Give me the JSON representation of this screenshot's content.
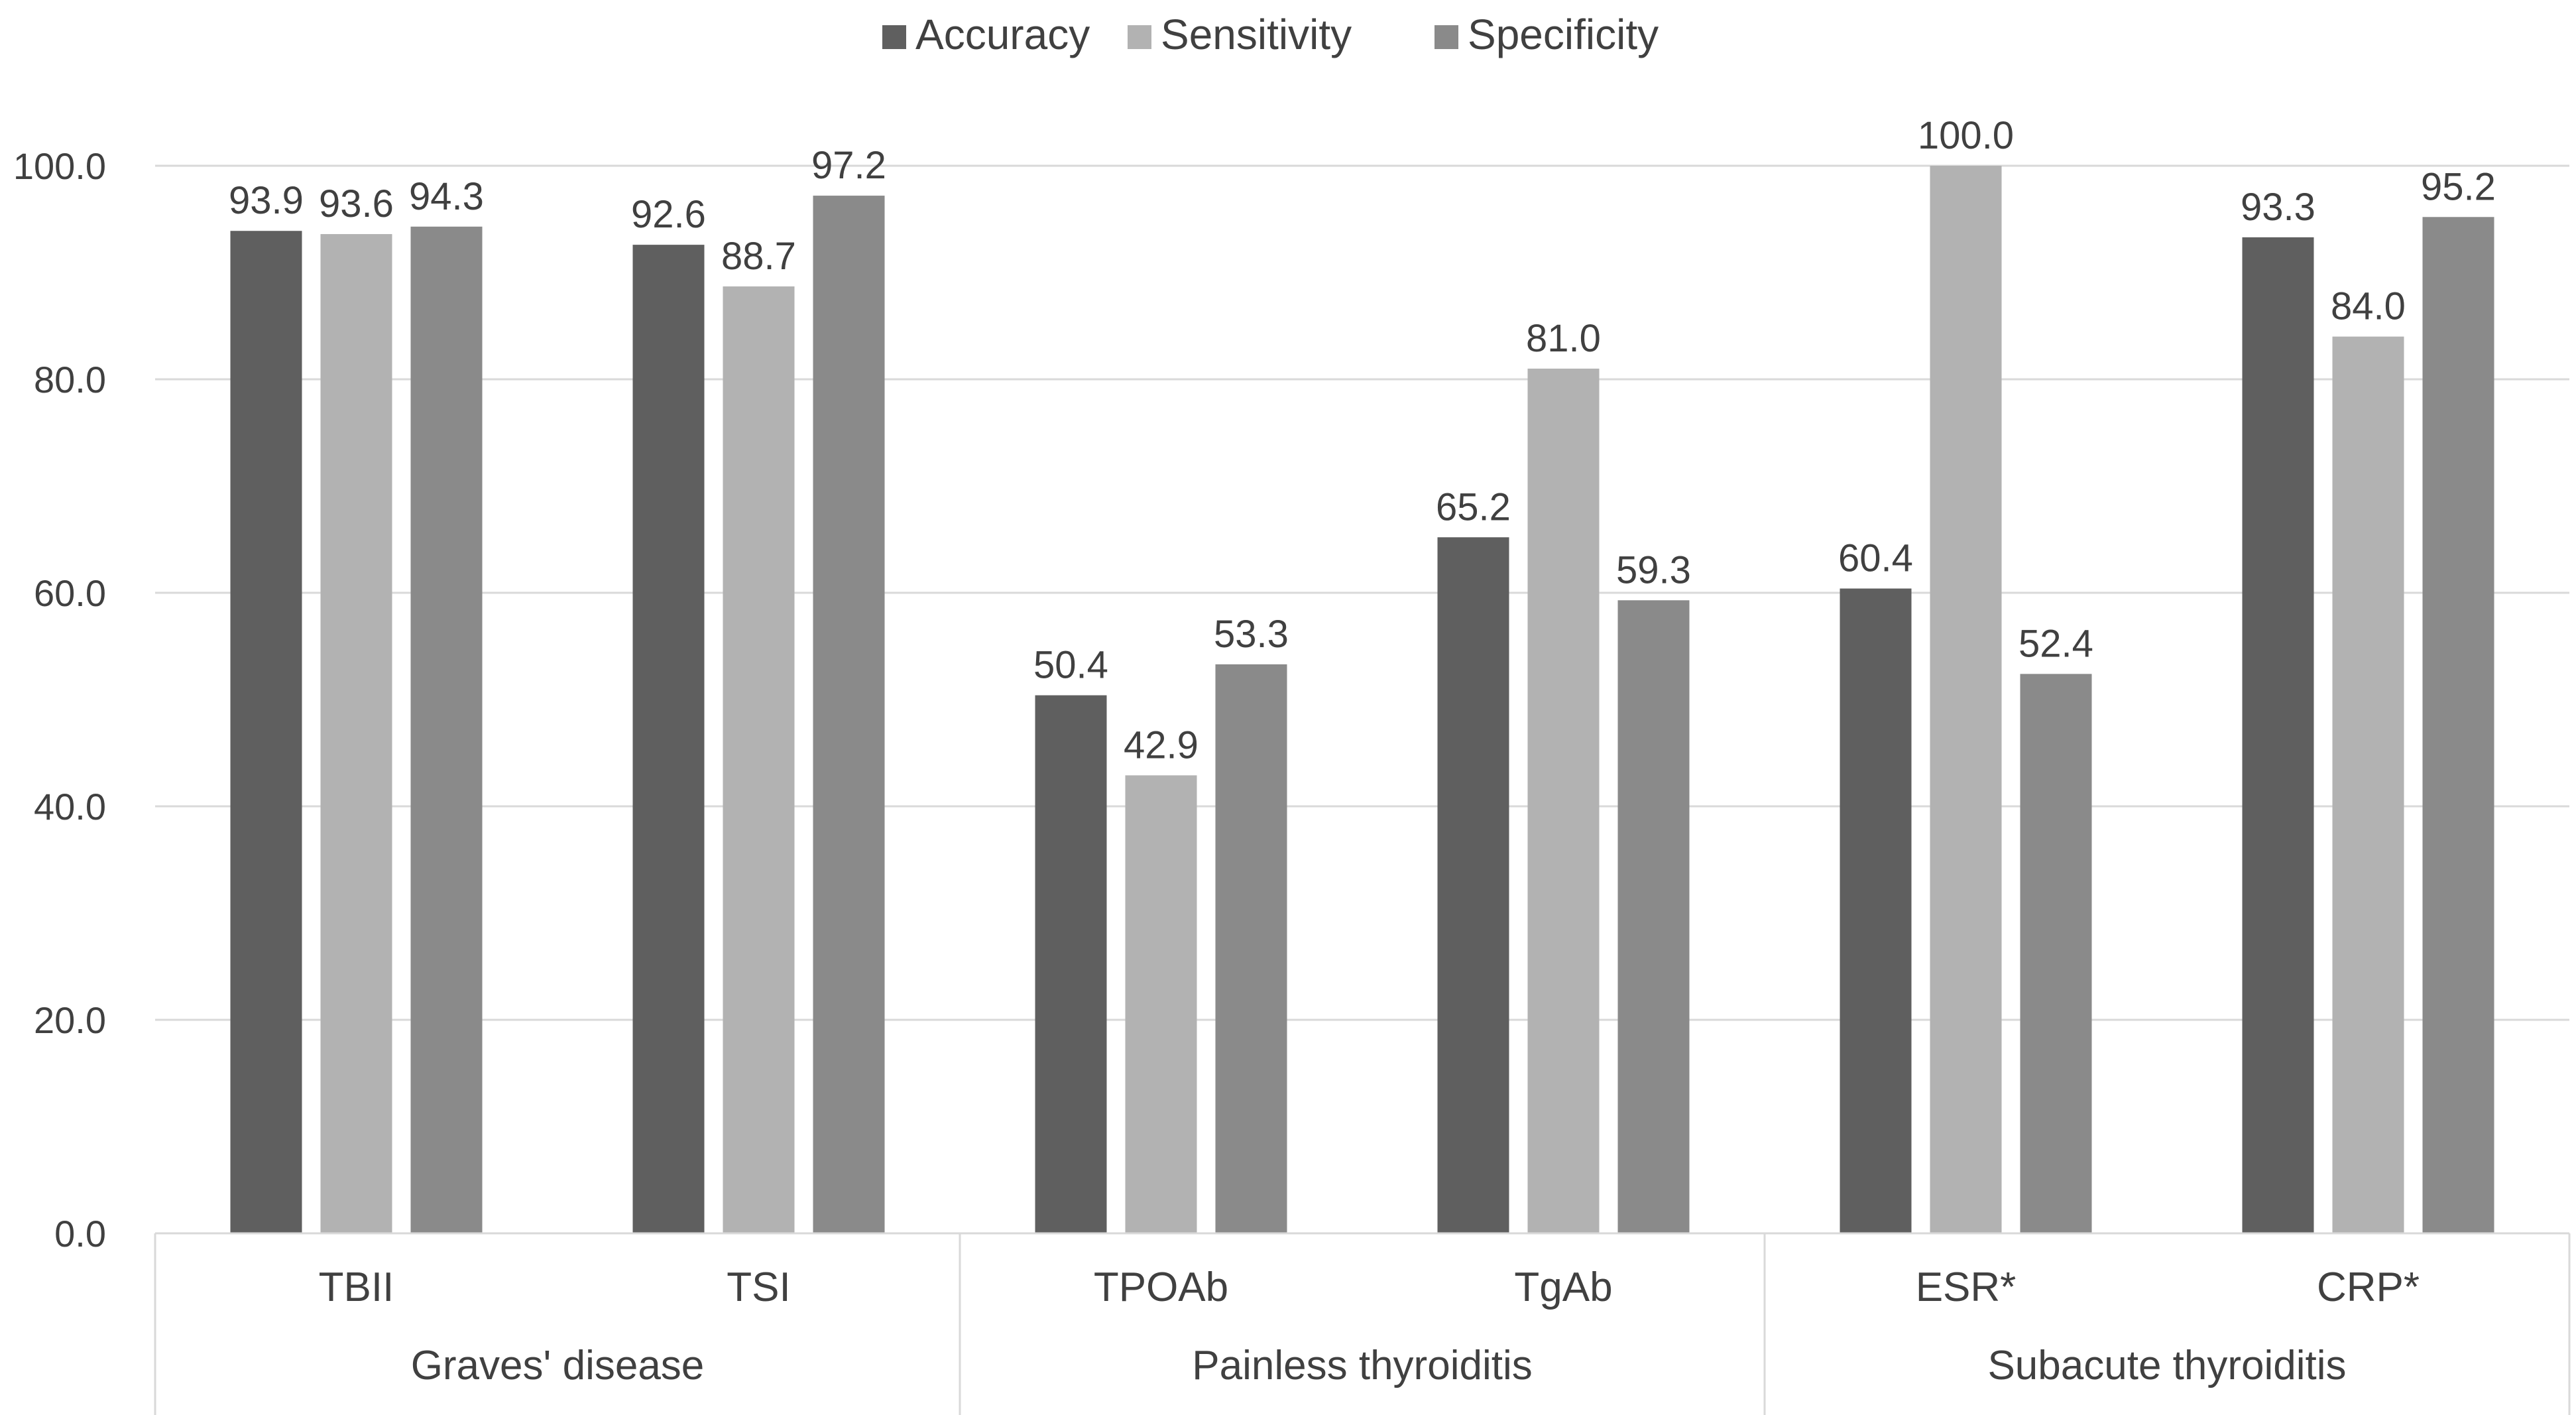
{
  "chart_data": {
    "type": "bar",
    "title": "",
    "xlabel": "",
    "ylabel": "",
    "ylim": [
      0,
      100
    ],
    "yticks": [
      0,
      20,
      40,
      60,
      80,
      100
    ],
    "ytick_labels": [
      "0.0",
      "20.0",
      "40.0",
      "60.0",
      "80.0",
      "100.0"
    ],
    "grid": true,
    "legend_position": "top-center",
    "categories": [
      "TBII",
      "TSI",
      "TPOAb",
      "TgAb",
      "ESR*",
      "CRP*"
    ],
    "groups": [
      {
        "label": "Graves' disease",
        "span": 2
      },
      {
        "label": "Painless thyroiditis",
        "span": 2
      },
      {
        "label": "Subacute thyroiditis",
        "span": 2
      }
    ],
    "series": [
      {
        "name": "Accuracy",
        "color": "#5f5f5f",
        "values": [
          93.9,
          92.6,
          50.4,
          65.2,
          60.4,
          93.3
        ],
        "labels": [
          "93.9",
          "92.6",
          "50.4",
          "65.2",
          "60.4",
          "93.3"
        ]
      },
      {
        "name": "Sensitivity",
        "color": "#b2b2b2",
        "values": [
          93.6,
          88.7,
          42.9,
          81.0,
          100.0,
          84.0
        ],
        "labels": [
          "93.6",
          "88.7",
          "42.9",
          "81.0",
          "100.0",
          "84.0"
        ]
      },
      {
        "name": "Specificity",
        "color": "#8a8a8a",
        "values": [
          94.3,
          97.2,
          53.3,
          59.3,
          52.4,
          95.2
        ],
        "labels": [
          "94.3",
          "97.2",
          "53.3",
          "59.3",
          "52.4",
          "95.2"
        ]
      }
    ]
  }
}
